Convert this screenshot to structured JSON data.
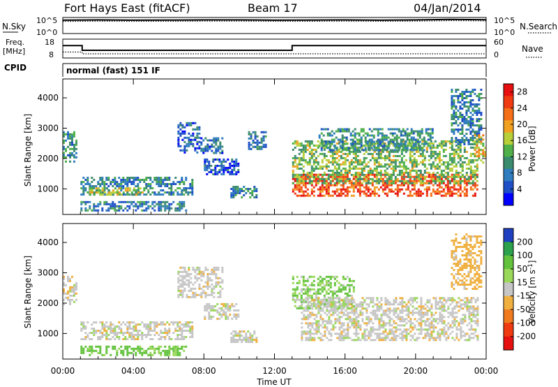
{
  "header": {
    "title": "Fort Hays East (fitACF)",
    "beam": "Beam 17",
    "date": "04/Jan/2014"
  },
  "noise_panel": {
    "left_label": "N.Sky",
    "right_label": "N.Search",
    "left_ticks": [
      "10^5",
      "10^0"
    ],
    "right_ticks": [
      "10^5",
      "10^0"
    ]
  },
  "freq_panel": {
    "left_label_line1": "Freq.",
    "left_label_line2": "[MHz]",
    "right_label": "Nave",
    "left_ticks": [
      "18",
      "8"
    ],
    "right_ticks": [
      "60",
      "0"
    ]
  },
  "cpid": {
    "label": "CPID",
    "value": "normal (fast) 151 IF"
  },
  "x_axis": {
    "label": "Time UT",
    "ticks": [
      "00:00",
      "04:00",
      "08:00",
      "12:00",
      "16:00",
      "20:00",
      "00:00"
    ]
  },
  "chart_data": [
    {
      "type": "line",
      "title": "",
      "xlabel": "",
      "ylabel": "N.Sky",
      "y_scale": "log",
      "ylim": [
        1,
        100000
      ],
      "series": [
        {
          "name": "N.Sky",
          "style": "solid",
          "x": [
            0,
            2,
            4,
            6,
            8,
            10,
            12,
            14,
            16,
            18,
            20,
            22,
            24
          ],
          "y": [
            20000,
            25000,
            20000,
            22000,
            25000,
            25000,
            20000,
            22000,
            25000,
            20000,
            25000,
            40000,
            30000
          ]
        },
        {
          "name": "N.Search",
          "style": "dotted",
          "x": [
            0,
            2,
            4,
            6,
            8,
            10,
            12,
            14,
            16,
            18,
            20,
            22,
            24
          ],
          "y": [
            8000,
            10000,
            9000,
            9000,
            10000,
            10000,
            9000,
            9000,
            10000,
            9000,
            10000,
            15000,
            12000
          ]
        }
      ]
    },
    {
      "type": "line",
      "title": "",
      "xlabel": "",
      "ylabel": "Freq. [MHz]",
      "ylim": [
        8,
        18
      ],
      "y2label": "Nave",
      "y2lim": [
        0,
        60
      ],
      "series": [
        {
          "name": "Freq.",
          "style": "solid",
          "x": [
            0,
            1.1,
            1.1,
            13.0,
            13.0,
            24
          ],
          "y": [
            14.7,
            14.7,
            12,
            12,
            14.7,
            14.7
          ]
        },
        {
          "name": "Nave",
          "style": "dotted",
          "axis": "right",
          "x": [
            0,
            1.1,
            1.1,
            24
          ],
          "y": [
            18,
            18,
            12,
            12
          ]
        }
      ]
    },
    {
      "type": "heatmap",
      "title": "",
      "xlabel": "Time UT",
      "ylabel": "Slant Range [km]",
      "xlim": [
        0,
        24
      ],
      "ylim": [
        180,
        4600
      ],
      "yticks": [
        1000,
        2000,
        3000,
        4000
      ],
      "colorbar": {
        "label": "Power [dB]",
        "ticks": [
          4,
          8,
          12,
          16,
          20,
          24,
          28
        ],
        "colors": [
          "#0000ff",
          "#1e4fc7",
          "#2f7dbf",
          "#3b8b6e",
          "#4fb04a",
          "#b8cf3a",
          "#f2a020",
          "#f56e18",
          "#ef3a12",
          "#e61010"
        ],
        "min": 0,
        "max": 30
      },
      "regions": [
        {
          "t": [
            0.0,
            0.8
          ],
          "r": [
            1900,
            2900
          ],
          "level": 10
        },
        {
          "t": [
            1.0,
            7.3
          ],
          "r": [
            800,
            1400
          ],
          "level": 9
        },
        {
          "t": [
            1.5,
            4.5
          ],
          "r": [
            800,
            1050
          ],
          "level": 16
        },
        {
          "t": [
            1.0,
            7.0
          ],
          "r": [
            300,
            600
          ],
          "level": 8
        },
        {
          "t": [
            6.5,
            7.8
          ],
          "r": [
            2200,
            3200
          ],
          "level": 6
        },
        {
          "t": [
            7.8,
            9.0
          ],
          "r": [
            2200,
            2700
          ],
          "level": 7
        },
        {
          "t": [
            8.0,
            10.0
          ],
          "r": [
            1500,
            2000
          ],
          "level": 6
        },
        {
          "t": [
            9.5,
            11.0
          ],
          "r": [
            700,
            1100
          ],
          "level": 8
        },
        {
          "t": [
            10.5,
            11.5
          ],
          "r": [
            2300,
            2900
          ],
          "level": 8
        },
        {
          "t": [
            13.0,
            23.5
          ],
          "r": [
            750,
            1500
          ],
          "level": 25
        },
        {
          "t": [
            13.0,
            23.5
          ],
          "r": [
            1200,
            2600
          ],
          "level": 14
        },
        {
          "t": [
            14.5,
            21.0
          ],
          "r": [
            2300,
            3000
          ],
          "level": 10
        },
        {
          "t": [
            22.0,
            23.7
          ],
          "r": [
            2500,
            4300
          ],
          "level": 8
        },
        {
          "t": [
            23.3,
            24.0
          ],
          "r": [
            1800,
            2800
          ],
          "level": 18
        }
      ]
    },
    {
      "type": "heatmap",
      "title": "",
      "xlabel": "Time UT",
      "ylabel": "Slant Range [km]",
      "xlim": [
        0,
        24
      ],
      "ylim": [
        180,
        4600
      ],
      "yticks": [
        1000,
        2000,
        3000,
        4000
      ],
      "colorbar": {
        "label": "Velocity [m s^-1]",
        "ticks": [
          200,
          100,
          50,
          15,
          -15,
          -50,
          -100,
          -200
        ],
        "colors": [
          "#1e3fc0",
          "#2aa14a",
          "#62c23c",
          "#9ad85a",
          "#c6c6c6",
          "#f0b040",
          "#f07a1e",
          "#ef3a12",
          "#e61010"
        ],
        "min": -250,
        "max": 250
      },
      "regions": [
        {
          "t": [
            0.0,
            0.8
          ],
          "r": [
            2000,
            2900
          ],
          "v": 0
        },
        {
          "t": [
            1.0,
            7.3
          ],
          "r": [
            800,
            1400
          ],
          "v": 0
        },
        {
          "t": [
            1.0,
            7.0
          ],
          "r": [
            300,
            600
          ],
          "v": 40
        },
        {
          "t": [
            6.5,
            9.0
          ],
          "r": [
            2200,
            3200
          ],
          "v": 0
        },
        {
          "t": [
            8.0,
            10.0
          ],
          "r": [
            1500,
            2000
          ],
          "v": 0
        },
        {
          "t": [
            9.5,
            11.0
          ],
          "r": [
            700,
            1100
          ],
          "v": 0
        },
        {
          "t": [
            13.0,
            16.5
          ],
          "r": [
            1800,
            2900
          ],
          "v": 30
        },
        {
          "t": [
            13.5,
            23.5
          ],
          "r": [
            800,
            2200
          ],
          "v": 0
        },
        {
          "t": [
            22.0,
            23.7
          ],
          "r": [
            2500,
            4300
          ],
          "v": -30
        }
      ]
    }
  ]
}
